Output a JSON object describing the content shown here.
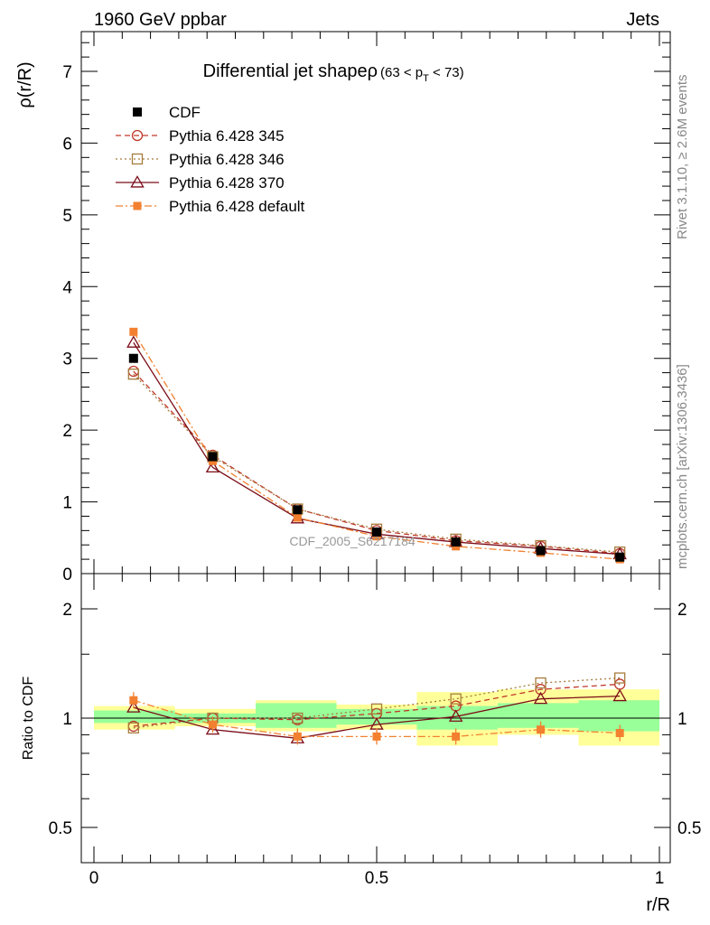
{
  "header": {
    "left": "1960 GeV ppbar",
    "right": "Jets"
  },
  "side_text": {
    "rivet": "Rivet 3.1.10, ≥ 2.6M events",
    "mcplots": "mcplots.cern.ch [arXiv:1306.3436]"
  },
  "watermark": "CDF_2005_S6217184",
  "chart_data": [
    {
      "type": "line",
      "title": "Differential jet shapeρ",
      "title_range": "(63 < p",
      "title_range_sub": "T",
      "title_range_end": " < 73)",
      "ylabel": "ρ(r/R)",
      "xlim": [
        0,
        1
      ],
      "ylim": [
        0,
        7.5
      ],
      "yticks": [
        "0",
        "1",
        "2",
        "3",
        "4",
        "5",
        "6",
        "7"
      ],
      "legend_position": "top-left",
      "x": [
        0.07,
        0.21,
        0.36,
        0.5,
        0.64,
        0.79,
        0.93
      ],
      "series": [
        {
          "name": "CDF",
          "values": [
            3.0,
            1.63,
            0.89,
            0.58,
            0.44,
            0.32,
            0.23
          ],
          "color": "#000000",
          "marker": "filled-square",
          "dash": "none"
        },
        {
          "name": "Pythia 6.428 345",
          "values": [
            2.82,
            1.65,
            0.9,
            0.6,
            0.46,
            0.38,
            0.28
          ],
          "color": "#c0392b",
          "marker": "open-circle",
          "dash": "6,4"
        },
        {
          "name": "Pythia 6.428 346",
          "values": [
            2.78,
            1.63,
            0.9,
            0.62,
            0.48,
            0.39,
            0.3
          ],
          "color": "#a67c3d",
          "marker": "open-square",
          "dash": "2,3"
        },
        {
          "name": "Pythia 6.428 370",
          "values": [
            3.22,
            1.48,
            0.77,
            0.55,
            0.44,
            0.35,
            0.27
          ],
          "color": "#7b0d18",
          "marker": "open-triangle",
          "dash": "none"
        },
        {
          "name": "Pythia 6.428 default",
          "values": [
            3.37,
            1.57,
            0.78,
            0.52,
            0.38,
            0.29,
            0.2
          ],
          "color": "#f28030",
          "marker": "filled-square-small",
          "dash": "8,3,2,3"
        }
      ]
    },
    {
      "type": "line",
      "ylabel": "Ratio to CDF",
      "xlabel": "r/R",
      "xlim": [
        0,
        1
      ],
      "ylim": [
        0.4,
        2.3
      ],
      "yticks": [
        "0.5",
        "1",
        "2"
      ],
      "xticks": [
        "0",
        "0.5",
        "1"
      ],
      "x": [
        0.07,
        0.21,
        0.36,
        0.5,
        0.64,
        0.79,
        0.93
      ],
      "bands": {
        "edges": [
          0,
          0.143,
          0.286,
          0.429,
          0.571,
          0.714,
          0.857,
          1.0
        ],
        "yellow": [
          [
            0.93,
            1.08
          ],
          [
            0.95,
            1.06
          ],
          [
            0.92,
            1.12
          ],
          [
            0.93,
            1.09
          ],
          [
            0.84,
            1.18
          ],
          [
            0.9,
            1.2
          ],
          [
            0.84,
            1.2
          ]
        ],
        "green": [
          [
            0.97,
            1.05
          ],
          [
            0.97,
            1.03
          ],
          [
            0.94,
            1.1
          ],
          [
            0.96,
            1.06
          ],
          [
            0.93,
            1.08
          ],
          [
            0.94,
            1.1
          ],
          [
            0.92,
            1.12
          ]
        ]
      },
      "series": [
        {
          "name": "Pythia 6.428 345",
          "values": [
            0.95,
            1.0,
            0.99,
            1.03,
            1.08,
            1.2,
            1.24
          ]
        },
        {
          "name": "Pythia 6.428 346",
          "values": [
            0.94,
            1.0,
            1.0,
            1.06,
            1.13,
            1.25,
            1.29
          ]
        },
        {
          "name": "Pythia 6.428 370",
          "values": [
            1.07,
            0.93,
            0.88,
            0.96,
            1.01,
            1.13,
            1.15
          ]
        },
        {
          "name": "Pythia 6.428 default",
          "values": [
            1.12,
            0.96,
            0.89,
            0.89,
            0.89,
            0.93,
            0.91
          ]
        }
      ]
    }
  ]
}
